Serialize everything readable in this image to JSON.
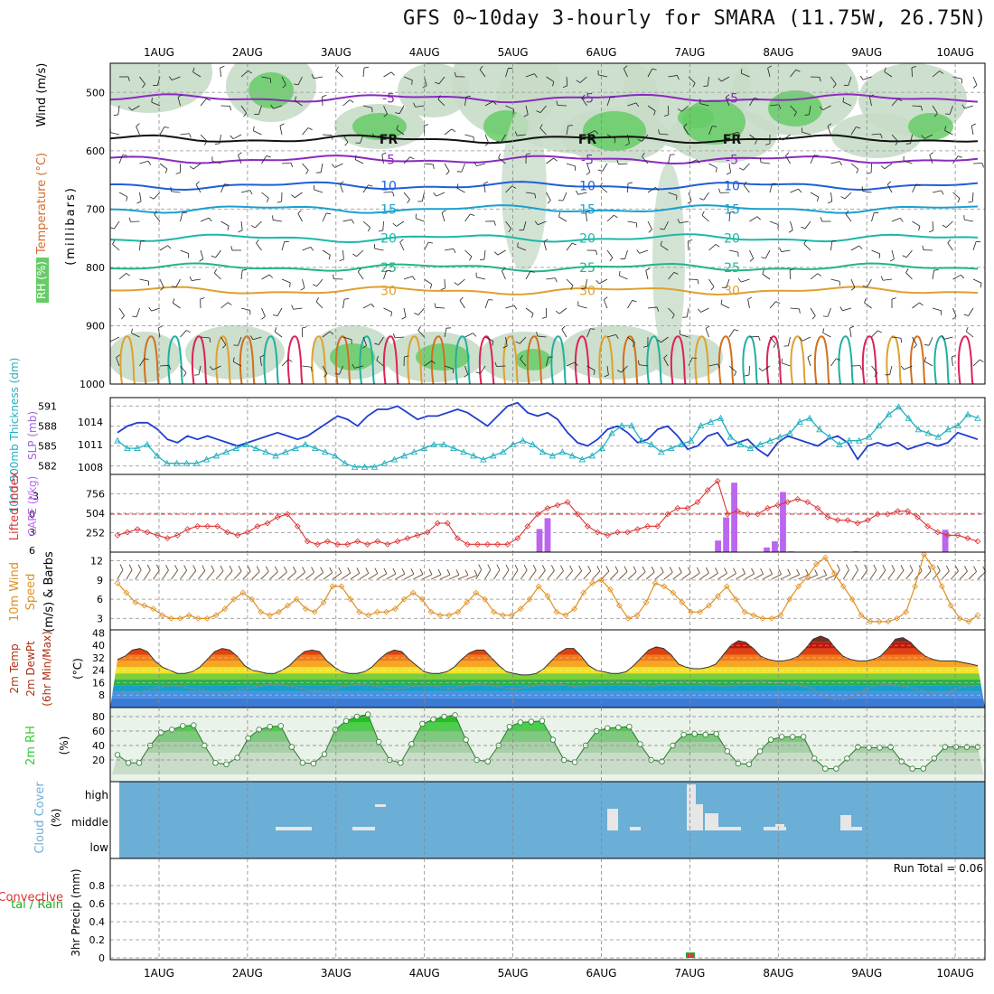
{
  "title": "GFS 0~10day 3-hourly for SMARA (11.75W, 26.75N)",
  "date_labels": [
    "1AUG",
    "2AUG",
    "3AUG",
    "4AUG",
    "5AUG",
    "6AUG",
    "7AUG",
    "8AUG",
    "9AUG",
    "10AUG"
  ],
  "colors": {
    "rh_fill": "#c8dcc8",
    "rh_dark": "#9fbf9f",
    "rh_green": "#66cc66",
    "lifted_index": "#dd3333",
    "cape": "#bb66ee",
    "wind10m": "#e09020",
    "thickness": "#1f3fcf",
    "slp": "#20b0c0",
    "cloud_bg": "#6baed6",
    "rh2m": "#33cc33",
    "temp_hot": "#cc1f00",
    "dewpt": "#888888"
  },
  "chart_data": [
    {
      "id": "upper_air",
      "type": "heatmap",
      "ylabels": [
        "Wind (m/s)",
        "Temperature (°C)",
        "RH (%)",
        "(millibars)"
      ],
      "yticks": [
        500,
        600,
        700,
        800,
        900,
        1000
      ],
      "ylim": [
        450,
        1000
      ],
      "isotherms": [
        {
          "label": "-5",
          "p": 510
        },
        {
          "label": "FR",
          "p": 580
        },
        {
          "label": "-5",
          "p": 615
        },
        {
          "label": "10",
          "p": 660
        },
        {
          "label": "15",
          "p": 700
        },
        {
          "label": "20",
          "p": 750
        },
        {
          "label": "25",
          "p": 800
        },
        {
          "label": "30",
          "p": 840
        }
      ]
    },
    {
      "id": "thickness_slp",
      "type": "line",
      "ylabel_left": "1000-500mb Thickness (dm)",
      "ylabel_right": "SLP (mb)",
      "left_ticks": [
        582,
        585,
        588,
        591
      ],
      "right_ticks": [
        1008,
        1011,
        1014
      ],
      "series": [
        {
          "name": "Thickness",
          "values": [
            587,
            588,
            588.5,
            588.5,
            587.5,
            586,
            585.5,
            586.5,
            586,
            586.5,
            586,
            585.5,
            585,
            585.5,
            586,
            586.5,
            587,
            586.5,
            586,
            586.5,
            587.5,
            588.5,
            589.5,
            589,
            588,
            589.5,
            590.5,
            590.5,
            591,
            590,
            589,
            589.5,
            589.5,
            590,
            590.5,
            590,
            589,
            588,
            589.5,
            591,
            591.5,
            590,
            589.5,
            590,
            589,
            587,
            585.5,
            585,
            586,
            587.5,
            588,
            587,
            585.5,
            586,
            587.5,
            588,
            586.5,
            584.5,
            585,
            586.5,
            587,
            585,
            585.5,
            586,
            584.5,
            583.5,
            585.5,
            586.5,
            586,
            585.5,
            585,
            586,
            586.5,
            585.5,
            583,
            585,
            585.5,
            585,
            585.5,
            584.5,
            585,
            585.5,
            585,
            585.5,
            587,
            586.5,
            586
          ]
        },
        {
          "name": "SLP",
          "values": [
            1011.5,
            1010.5,
            1010.5,
            1011,
            1009.5,
            1008.5,
            1008.5,
            1008.5,
            1008.5,
            1009,
            1009.5,
            1010,
            1010.5,
            1011,
            1010.5,
            1010,
            1009.5,
            1010,
            1010.5,
            1011,
            1010.5,
            1010,
            1009.5,
            1008.5,
            1008,
            1008,
            1008,
            1008.5,
            1009,
            1009.5,
            1010,
            1010.5,
            1011,
            1011,
            1010.5,
            1010,
            1009.5,
            1009,
            1009.5,
            1010,
            1011,
            1011.5,
            1011,
            1010,
            1009.5,
            1010,
            1009.5,
            1009,
            1009.5,
            1010.5,
            1012.5,
            1013.5,
            1013.5,
            1011.5,
            1011,
            1010,
            1010.5,
            1011,
            1011.5,
            1013.5,
            1014,
            1014.5,
            1012,
            1011,
            1010.5,
            1011,
            1011.5,
            1012,
            1012.5,
            1014,
            1014.5,
            1013,
            1012,
            1011,
            1011.5,
            1011.5,
            1012,
            1013.5,
            1015,
            1016,
            1014.5,
            1013,
            1012.5,
            1012,
            1013,
            1013.5,
            1015,
            1014.5
          ]
        }
      ]
    },
    {
      "id": "lifted_cape",
      "type": "bar",
      "ylabel_left": "Lifted Index",
      "ylabel_right": "CAPE (J/kg)",
      "left_ticks": [
        6,
        3,
        0,
        -3
      ],
      "right_ticks": [
        252,
        504,
        756
      ],
      "series": [
        {
          "name": "Lifted Index",
          "values": [
            3.5,
            3,
            2.5,
            3,
            3.5,
            4,
            3.5,
            2.5,
            2,
            2,
            2,
            3,
            3.5,
            3,
            2,
            1.5,
            0.5,
            0,
            2,
            4.5,
            5,
            4.5,
            5,
            5,
            4.5,
            5,
            4.5,
            5,
            4.5,
            4,
            3.5,
            3,
            1.5,
            1.5,
            4,
            5,
            5,
            5,
            5,
            5,
            4,
            2,
            0,
            -1,
            -1.5,
            -2,
            0,
            2,
            3,
            3.5,
            3,
            3,
            2.5,
            2,
            2,
            0,
            -1,
            -1,
            -2,
            -4,
            -5.5,
            0,
            -0.5,
            0,
            0,
            -1,
            -1.5,
            -2,
            -2.5,
            -2,
            -1,
            0.5,
            1,
            1,
            1.5,
            1,
            0,
            0,
            -0.5,
            -0.5,
            0.5,
            2,
            3,
            3.5,
            3.5,
            4,
            4.5
          ]
        },
        {
          "name": "CAPE",
          "values": [
            0,
            0,
            0,
            0,
            0,
            0,
            0,
            0,
            0,
            0,
            0,
            0,
            0,
            0,
            0,
            0,
            0,
            0,
            0,
            0,
            0,
            0,
            0,
            0,
            0,
            0,
            0,
            0,
            0,
            0,
            0,
            0,
            0,
            0,
            0,
            0,
            0,
            0,
            0,
            0,
            0,
            0,
            0,
            0,
            0,
            0,
            0,
            0,
            0,
            0,
            0,
            0,
            300,
            440,
            0,
            0,
            0,
            0,
            0,
            0,
            0,
            0,
            0,
            0,
            0,
            0,
            0,
            0,
            0,
            0,
            0,
            0,
            0,
            0,
            150,
            450,
            900,
            0,
            0,
            0,
            60,
            140,
            780,
            10,
            0,
            0,
            0,
            0,
            0,
            0,
            0,
            10,
            0,
            0,
            0,
            0,
            0,
            0,
            0,
            0,
            0,
            0,
            290,
            0,
            0,
            0,
            0
          ]
        }
      ]
    },
    {
      "id": "wind10m",
      "type": "line",
      "ylabel": "10m Wind Speed (m/s) & Barbs",
      "ticks": [
        3,
        6,
        9,
        12
      ],
      "series": [
        {
          "name": "Speed",
          "values": [
            8.5,
            7,
            5.5,
            5,
            4.5,
            3.5,
            3,
            3,
            3.5,
            3,
            3,
            3.5,
            4.5,
            6,
            7,
            6,
            4,
            3.5,
            4,
            5,
            6,
            4.5,
            4,
            5.5,
            8,
            8,
            6,
            4,
            3.5,
            4,
            4,
            4.5,
            6,
            7,
            6,
            4,
            3.5,
            3.5,
            4,
            5.5,
            7,
            6,
            4,
            3.5,
            3.5,
            4.5,
            6,
            8,
            6.5,
            4,
            3.5,
            4.5,
            7,
            8.5,
            9,
            7.5,
            5,
            3,
            3.5,
            5.5,
            8.5,
            8,
            7,
            5.5,
            4,
            4,
            5,
            6.5,
            8,
            6,
            4,
            3.5,
            3,
            3,
            3.5,
            6,
            8,
            9.5,
            11.5,
            12.5,
            10,
            8,
            6,
            3.5,
            2.5,
            2.5,
            2.5,
            3,
            4,
            8,
            13,
            11,
            8,
            5,
            3,
            2.5,
            3.5
          ]
        }
      ]
    },
    {
      "id": "temp2m",
      "type": "area",
      "ylabel": "2m Temp 2m DewPt (6hr Min/Max) (°C)",
      "ticks": [
        8,
        16,
        24,
        32,
        40,
        48
      ],
      "series": [
        {
          "name": "2m Temp",
          "values": [
            31,
            33,
            37,
            38,
            36,
            30,
            26,
            24,
            22,
            22,
            23,
            26,
            31,
            36,
            38,
            37,
            33,
            27,
            24,
            23,
            22,
            22,
            24,
            27,
            32,
            36,
            37,
            36,
            30,
            26,
            23,
            22,
            22,
            23,
            26,
            31,
            35,
            37,
            36,
            31,
            27,
            23,
            22,
            22,
            23,
            26,
            31,
            35,
            37,
            37,
            32,
            27,
            23,
            22,
            21,
            21,
            22,
            25,
            30,
            35,
            38,
            38,
            33,
            27,
            24,
            23,
            22,
            22,
            23,
            27,
            32,
            37,
            39,
            38,
            34,
            28,
            26,
            25,
            25,
            26,
            28,
            34,
            40,
            43,
            42,
            38,
            33,
            31,
            30,
            30,
            31,
            33,
            38,
            44,
            46,
            44,
            38,
            33,
            31,
            30,
            30,
            31,
            33,
            38,
            44,
            45,
            42,
            37,
            33,
            31,
            30,
            30,
            30,
            29,
            28,
            27
          ]
        },
        {
          "name": "2m DewPt",
          "values": [
            10,
            9,
            9,
            10,
            12,
            13,
            14,
            14,
            13,
            12,
            11,
            10,
            10,
            10,
            11,
            12,
            13,
            14,
            15,
            15,
            14,
            13,
            12,
            11,
            11,
            12,
            13,
            14,
            15,
            15,
            14,
            13,
            12,
            12,
            13,
            14,
            14,
            14,
            13,
            12,
            13,
            14,
            15,
            15,
            14,
            13,
            12,
            12,
            13,
            14,
            15,
            15,
            15,
            14,
            13,
            14,
            15,
            16,
            17,
            17,
            16,
            15,
            14,
            14,
            15,
            16,
            17,
            17,
            16,
            15,
            14,
            14,
            14,
            15,
            16,
            17,
            17,
            16,
            16,
            15,
            14,
            13,
            11,
            8,
            5,
            5,
            6,
            9,
            12,
            14,
            15,
            15,
            14,
            13,
            12,
            10,
            9,
            9,
            11,
            13,
            14,
            14
          ]
        }
      ]
    },
    {
      "id": "rh2m",
      "type": "area",
      "ylabel": "2m RH (%)",
      "ticks": [
        20,
        40,
        60,
        80
      ],
      "series": [
        {
          "name": "2m RH",
          "values": [
            27,
            16,
            16,
            40,
            58,
            62,
            67,
            68,
            40,
            16,
            14,
            23,
            50,
            62,
            66,
            67,
            38,
            16,
            15,
            28,
            62,
            74,
            80,
            83,
            45,
            20,
            16,
            42,
            70,
            76,
            80,
            82,
            48,
            20,
            18,
            40,
            66,
            72,
            73,
            74,
            48,
            20,
            17,
            40,
            60,
            64,
            65,
            66,
            42,
            20,
            18,
            40,
            55,
            56,
            55,
            56,
            32,
            15,
            14,
            32,
            48,
            52,
            52,
            52,
            22,
            8,
            8,
            22,
            38,
            37,
            37,
            38,
            18,
            8,
            8,
            22,
            38,
            38,
            38,
            38
          ]
        }
      ]
    },
    {
      "id": "cloud_cover",
      "type": "bar",
      "ylabel": "Cloud Cover (%)",
      "categories": [
        "low",
        "middle",
        "high"
      ]
    },
    {
      "id": "precip",
      "type": "bar",
      "ylabel": "3hr Precip (mm)",
      "left_label_1": "tal / Rain",
      "left_label_2": "Convective",
      "ticks": [
        0,
        0.2,
        0.4,
        0.6,
        0.8
      ],
      "ylim": [
        0,
        1
      ],
      "run_total_text": "Run Total = 0.06",
      "series": [
        {
          "name": "Total",
          "values": [
            0.06
          ]
        },
        {
          "name": "Convective",
          "values": [
            0.04
          ]
        }
      ]
    }
  ]
}
